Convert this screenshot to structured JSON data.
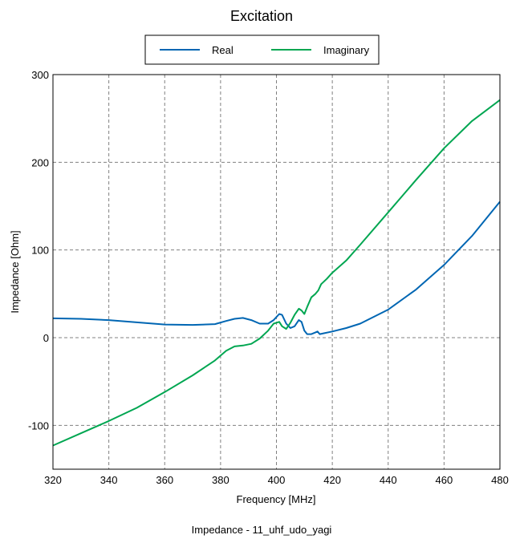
{
  "chart_data": {
    "type": "line",
    "title": "Excitation",
    "xlabel": "Frequency [MHz]",
    "ylabel": "Impedance [Ohm]",
    "caption": "Impedance - 11_uhf_udo_yagi",
    "xlim": [
      320,
      480
    ],
    "ylim": [
      -150,
      300
    ],
    "xticks": [
      320,
      340,
      360,
      380,
      400,
      420,
      440,
      460,
      480
    ],
    "yticks": [
      -100,
      0,
      100,
      200,
      300
    ],
    "xtick_labels": [
      "320",
      "340",
      "360",
      "380",
      "400",
      "420",
      "440",
      "460",
      "480"
    ],
    "ytick_labels": [
      "-100",
      "0",
      "100",
      "200",
      "300"
    ],
    "grid": true,
    "legend_position": "top-center",
    "series": [
      {
        "name": "Real",
        "color": "#0066b3",
        "x": [
          320,
          330,
          340,
          350,
          360,
          370,
          378,
          382,
          385,
          388,
          391,
          394,
          397,
          399,
          401,
          402,
          403.5,
          405,
          406.5,
          408,
          409,
          410,
          411,
          412.5,
          414,
          414.7,
          415.5,
          417,
          420,
          425,
          430,
          440,
          450,
          460,
          470,
          480
        ],
        "y": [
          22,
          21.5,
          20,
          17.5,
          15,
          14.5,
          15.5,
          19,
          21.5,
          22.5,
          20,
          16,
          16,
          20,
          27,
          26,
          16,
          11,
          13,
          20,
          18,
          8,
          4,
          4,
          6,
          7,
          4,
          5,
          7,
          11,
          16,
          32,
          55,
          83,
          116,
          155
        ]
      },
      {
        "name": "Imaginary",
        "color": "#00a651",
        "x": [
          320,
          330,
          340,
          350,
          360,
          370,
          378,
          382,
          385,
          388,
          391,
          394,
          397,
          399,
          401,
          402,
          403.5,
          405,
          406.5,
          408,
          409,
          410,
          411,
          412.5,
          414,
          415,
          416,
          418,
          420,
          425,
          430,
          440,
          450,
          460,
          470,
          480
        ],
        "y": [
          -123,
          -109,
          -95,
          -80,
          -62,
          -43,
          -26,
          -15,
          -10,
          -9,
          -7,
          -1,
          8,
          16,
          18,
          13,
          10,
          17,
          26,
          33,
          31,
          27,
          35,
          46,
          50,
          54,
          61,
          67,
          74,
          88,
          106,
          143,
          180,
          216,
          247,
          271
        ]
      }
    ]
  }
}
